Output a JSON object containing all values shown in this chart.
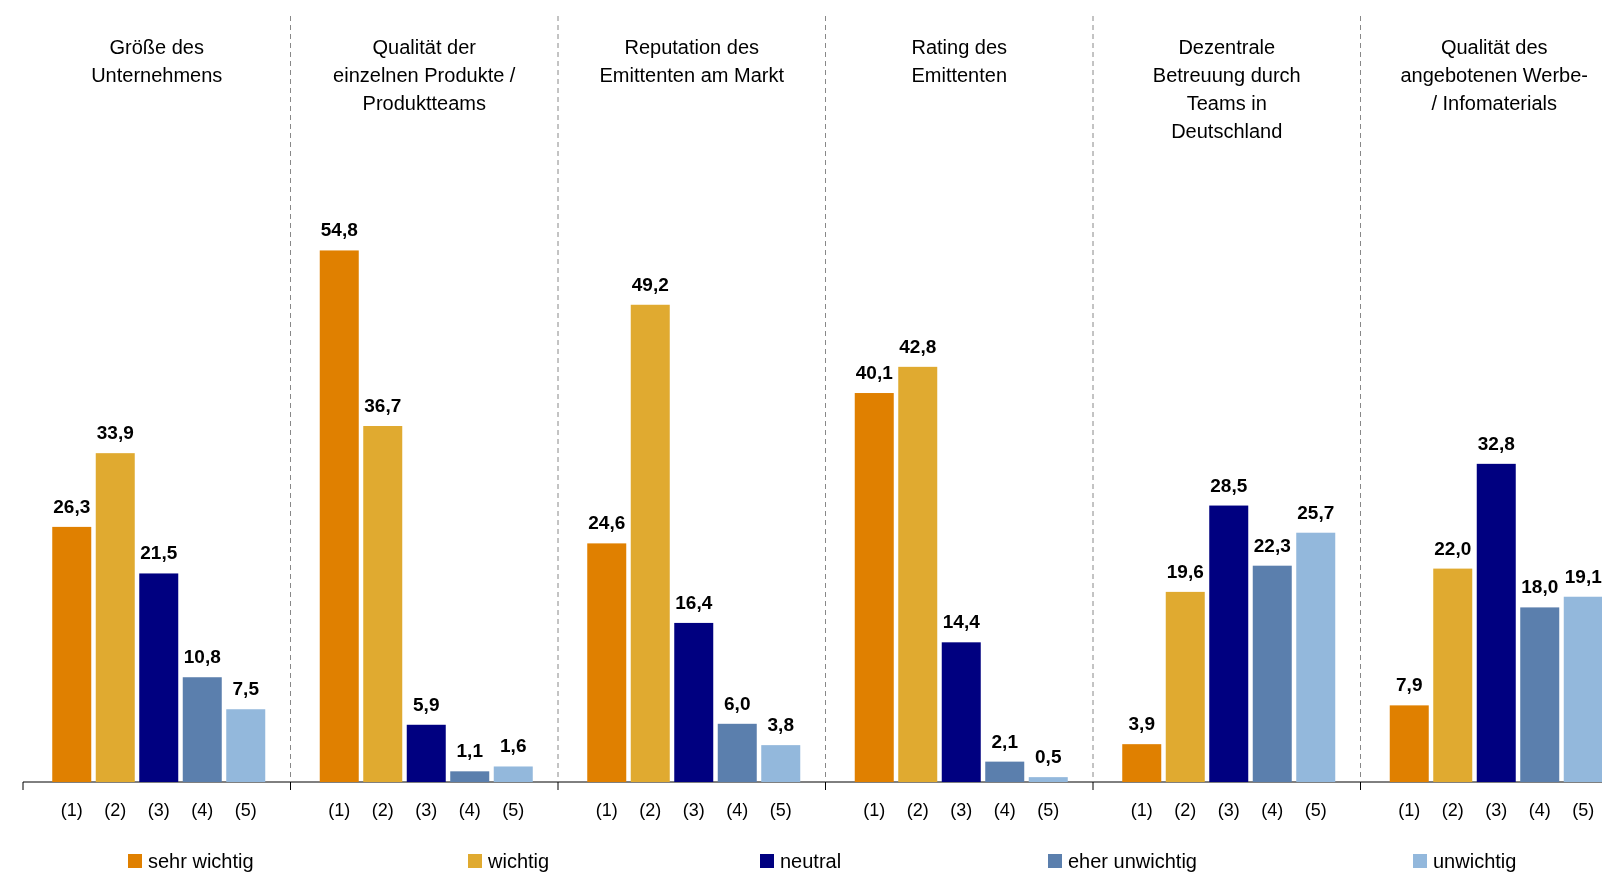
{
  "chart_data": [
    {
      "type": "bar",
      "title": "Größe des\nUnternehmens",
      "categories": [
        "(1)",
        "(2)",
        "(3)",
        "(4)",
        "(5)"
      ],
      "legend": "bottom",
      "series": [
        {
          "name": "sehr wichtig",
          "color": "#e08000",
          "values": [
            26.3,
            null,
            null,
            null,
            null
          ],
          "value_labels": [
            "26,3",
            null,
            null,
            null,
            null
          ]
        },
        {
          "name": "wichtig",
          "color": "#e0aa30",
          "values": [
            null,
            33.9,
            null,
            null,
            null
          ],
          "value_labels": [
            null,
            "33,9",
            null,
            null,
            null
          ]
        },
        {
          "name": "neutral",
          "color": "#000080",
          "values": [
            null,
            null,
            21.5,
            null,
            null
          ],
          "value_labels": [
            null,
            null,
            "21,5",
            null,
            null
          ]
        },
        {
          "name": "eher unwichtig",
          "color": "#5b7fad",
          "values": [
            null,
            null,
            null,
            10.8,
            null
          ],
          "value_labels": [
            null,
            null,
            null,
            "10,8",
            null
          ]
        },
        {
          "name": "unwichtig",
          "color": "#93b8dc",
          "values": [
            null,
            null,
            null,
            null,
            7.5
          ],
          "value_labels": [
            null,
            null,
            null,
            null,
            "7,5"
          ]
        }
      ]
    },
    {
      "type": "bar",
      "title": "Qualität der\neinzelnen Produkte /\nProduktteams",
      "categories": [
        "(1)",
        "(2)",
        "(3)",
        "(4)",
        "(5)"
      ],
      "series": [
        {
          "color": "#e08000",
          "values": [
            54.8,
            null,
            null,
            null,
            null
          ],
          "value_labels": [
            "54,8",
            null,
            null,
            null,
            null
          ]
        },
        {
          "color": "#e0aa30",
          "values": [
            null,
            36.7,
            null,
            null,
            null
          ],
          "value_labels": [
            null,
            "36,7",
            null,
            null,
            null
          ]
        },
        {
          "color": "#000080",
          "values": [
            null,
            null,
            5.9,
            null,
            null
          ],
          "value_labels": [
            null,
            null,
            "5,9",
            null,
            null
          ]
        },
        {
          "color": "#5b7fad",
          "values": [
            null,
            null,
            null,
            1.1,
            null
          ],
          "value_labels": [
            null,
            null,
            null,
            "1,1",
            null
          ]
        },
        {
          "color": "#93b8dc",
          "values": [
            null,
            null,
            null,
            null,
            1.6
          ],
          "value_labels": [
            null,
            null,
            null,
            null,
            "1,6"
          ]
        }
      ]
    },
    {
      "type": "bar",
      "title": "Reputation des\nEmittenten am Markt",
      "categories": [
        "(1)",
        "(2)",
        "(3)",
        "(4)",
        "(5)"
      ],
      "series": [
        {
          "color": "#e08000",
          "values": [
            24.6,
            null,
            null,
            null,
            null
          ],
          "value_labels": [
            "24,6",
            null,
            null,
            null,
            null
          ]
        },
        {
          "color": "#e0aa30",
          "values": [
            null,
            49.2,
            null,
            null,
            null
          ],
          "value_labels": [
            null,
            "49,2",
            null,
            null,
            null
          ]
        },
        {
          "color": "#000080",
          "values": [
            null,
            null,
            16.4,
            null,
            null
          ],
          "value_labels": [
            null,
            null,
            "16,4",
            null,
            null
          ]
        },
        {
          "color": "#5b7fad",
          "values": [
            null,
            null,
            null,
            6.0,
            null
          ],
          "value_labels": [
            null,
            null,
            null,
            "6,0",
            null
          ]
        },
        {
          "color": "#93b8dc",
          "values": [
            null,
            null,
            null,
            null,
            3.8
          ],
          "value_labels": [
            null,
            null,
            null,
            null,
            "3,8"
          ]
        }
      ]
    },
    {
      "type": "bar",
      "title": "Rating des\nEmittenten",
      "categories": [
        "(1)",
        "(2)",
        "(3)",
        "(4)",
        "(5)"
      ],
      "series": [
        {
          "color": "#e08000",
          "values": [
            40.1,
            null,
            null,
            null,
            null
          ],
          "value_labels": [
            "40,1",
            null,
            null,
            null,
            null
          ]
        },
        {
          "color": "#e0aa30",
          "values": [
            null,
            42.8,
            null,
            null,
            null
          ],
          "value_labels": [
            null,
            "42,8",
            null,
            null,
            null
          ]
        },
        {
          "color": "#000080",
          "values": [
            null,
            null,
            14.4,
            null,
            null
          ],
          "value_labels": [
            null,
            null,
            "14,4",
            null,
            null
          ]
        },
        {
          "color": "#5b7fad",
          "values": [
            null,
            null,
            null,
            2.1,
            null
          ],
          "value_labels": [
            null,
            null,
            null,
            "2,1",
            null
          ]
        },
        {
          "color": "#93b8dc",
          "values": [
            null,
            null,
            null,
            null,
            0.5
          ],
          "value_labels": [
            null,
            null,
            null,
            null,
            "0,5"
          ]
        }
      ]
    },
    {
      "type": "bar",
      "title": "Dezentrale\nBetreuung durch\nTeams in\nDeutschland",
      "categories": [
        "(1)",
        "(2)",
        "(3)",
        "(4)",
        "(5)"
      ],
      "series": [
        {
          "color": "#e08000",
          "values": [
            3.9,
            null,
            null,
            null,
            null
          ],
          "value_labels": [
            "3,9",
            null,
            null,
            null,
            null
          ]
        },
        {
          "color": "#e0aa30",
          "values": [
            null,
            19.6,
            null,
            null,
            null
          ],
          "value_labels": [
            null,
            "19,6",
            null,
            null,
            null
          ]
        },
        {
          "color": "#000080",
          "values": [
            null,
            null,
            28.5,
            null,
            null
          ],
          "value_labels": [
            null,
            null,
            "28,5",
            null,
            null
          ]
        },
        {
          "color": "#5b7fad",
          "values": [
            null,
            null,
            null,
            22.3,
            null
          ],
          "value_labels": [
            null,
            null,
            null,
            "22,3",
            null
          ]
        },
        {
          "color": "#93b8dc",
          "values": [
            null,
            null,
            null,
            null,
            25.7
          ],
          "value_labels": [
            null,
            null,
            null,
            null,
            "25,7"
          ]
        }
      ]
    },
    {
      "type": "bar",
      "title": "Qualität des\nangebotenen Werbe-\n/ Infomaterials",
      "categories": [
        "(1)",
        "(2)",
        "(3)",
        "(4)",
        "(5)"
      ],
      "series": [
        {
          "color": "#e08000",
          "values": [
            7.9,
            null,
            null,
            null,
            null
          ],
          "value_labels": [
            "7,9",
            null,
            null,
            null,
            null
          ]
        },
        {
          "color": "#e0aa30",
          "values": [
            null,
            22.0,
            null,
            null,
            null
          ],
          "value_labels": [
            null,
            "22,0",
            null,
            null,
            null
          ]
        },
        {
          "color": "#000080",
          "values": [
            null,
            null,
            32.8,
            null,
            null
          ],
          "value_labels": [
            null,
            null,
            "32,8",
            null,
            null
          ]
        },
        {
          "color": "#5b7fad",
          "values": [
            null,
            null,
            null,
            18.0,
            null
          ],
          "value_labels": [
            null,
            null,
            null,
            "18,0",
            null
          ]
        },
        {
          "color": "#93b8dc",
          "values": [
            null,
            null,
            null,
            null,
            19.1
          ],
          "value_labels": [
            null,
            null,
            null,
            null,
            "19,1"
          ]
        }
      ]
    }
  ]
}
